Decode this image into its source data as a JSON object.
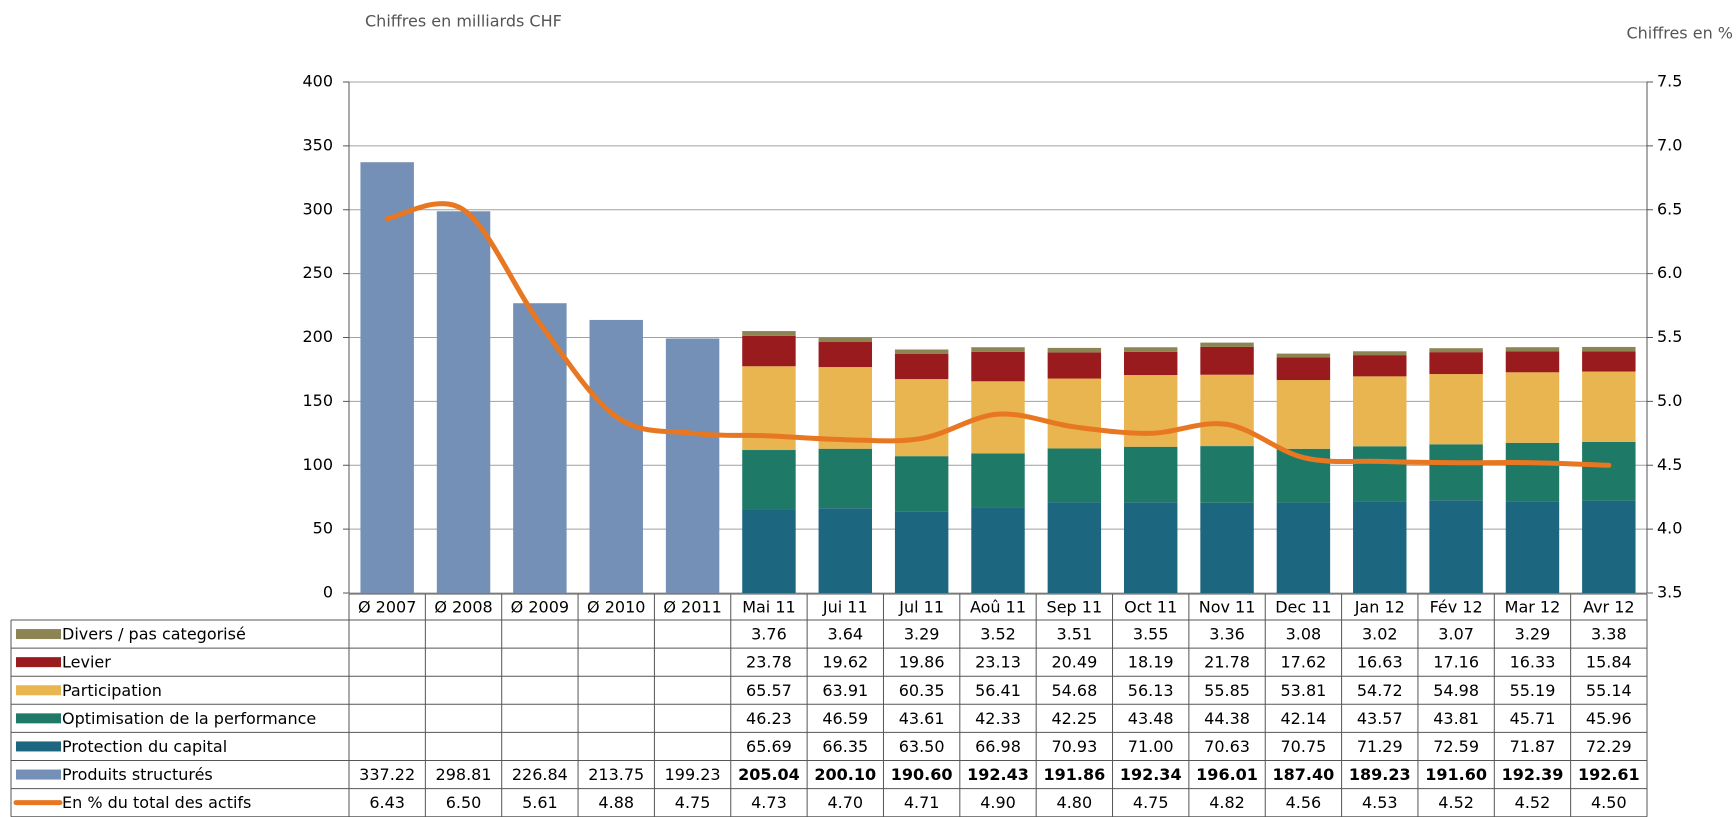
{
  "chart_data": {
    "type": "bar",
    "stacked": true,
    "y_label": "Chiffres en milliards CHF",
    "y2_label": "Chiffres en %",
    "categories": [
      "Ø 2007",
      "Ø 2008",
      "Ø 2009",
      "Ø 2010",
      "Ø 2011",
      "Mai 11",
      "Jui 11",
      "Jul 11",
      "Aoû 11",
      "Sep 11",
      "Oct 11",
      "Nov 11",
      "Dec 11",
      "Jan 12",
      "Fév 12",
      "Mar 12",
      "Avr 12"
    ],
    "ylim": [
      0,
      400
    ],
    "yticks": [
      0,
      50,
      100,
      150,
      200,
      250,
      300,
      350,
      400
    ],
    "y2lim": [
      3.5,
      7.5
    ],
    "y2ticks": [
      3.5,
      {
        "value": 4,
        "label": "4.0"
      },
      4.5,
      {
        "value": 5,
        "label": "5.0"
      },
      5.5,
      {
        "value": 6,
        "label": "6.0"
      },
      6.5,
      {
        "value": 7,
        "label": "7.0"
      },
      7.5
    ],
    "grid": true,
    "series": [
      {
        "name": "Divers / pas categorisé",
        "color": "#8c8452",
        "values": [
          null,
          null,
          null,
          null,
          null,
          3.76,
          3.64,
          3.29,
          3.52,
          3.51,
          3.55,
          3.36,
          3.08,
          3.02,
          3.07,
          3.29,
          3.38
        ],
        "value_labels": [
          null,
          null,
          null,
          null,
          null,
          "3.76",
          "3.64",
          "3.29",
          "3.52",
          "3.51",
          "3.55",
          "3.36",
          "3.08",
          "3.02",
          "3.07",
          "3.29",
          "3.38"
        ]
      },
      {
        "name": "Levier",
        "color": "#9a1b1e",
        "values": [
          null,
          null,
          null,
          null,
          null,
          23.78,
          19.62,
          19.86,
          23.13,
          20.49,
          18.19,
          21.78,
          17.62,
          16.63,
          17.16,
          16.33,
          15.84
        ],
        "value_labels": [
          null,
          null,
          null,
          null,
          null,
          "23.78",
          "19.62",
          "19.86",
          "23.13",
          "20.49",
          "18.19",
          "21.78",
          "17.62",
          "16.63",
          "17.16",
          "16.33",
          "15.84"
        ]
      },
      {
        "name": "Participation",
        "color": "#e9b550",
        "values": [
          null,
          null,
          null,
          null,
          null,
          65.57,
          63.91,
          60.35,
          56.41,
          54.68,
          56.13,
          55.85,
          53.81,
          54.72,
          54.98,
          55.19,
          55.14
        ],
        "value_labels": [
          null,
          null,
          null,
          null,
          null,
          "65.57",
          "63.91",
          "60.35",
          "56.41",
          "54.68",
          "56.13",
          "55.85",
          "53.81",
          "54.72",
          "54.98",
          "55.19",
          "55.14"
        ]
      },
      {
        "name": "Optimisation de la performance",
        "color": "#1e7a66",
        "values": [
          null,
          null,
          null,
          null,
          null,
          46.23,
          46.59,
          43.61,
          42.33,
          42.25,
          43.48,
          44.38,
          42.14,
          43.57,
          43.81,
          45.71,
          45.96
        ],
        "value_labels": [
          null,
          null,
          null,
          null,
          null,
          "46.23",
          "46.59",
          "43.61",
          "42.33",
          "42.25",
          "43.48",
          "44.38",
          "42.14",
          "43.57",
          "43.81",
          "45.71",
          "45.96"
        ]
      },
      {
        "name": "Protection du capital",
        "color": "#1d6680",
        "values": [
          null,
          null,
          null,
          null,
          null,
          65.69,
          66.35,
          63.5,
          66.98,
          70.93,
          71.0,
          70.63,
          70.75,
          71.29,
          72.59,
          71.87,
          72.29
        ],
        "value_labels": [
          null,
          null,
          null,
          null,
          null,
          "65.69",
          "66.35",
          "63.50",
          "66.98",
          "70.93",
          "71.00",
          "70.63",
          "70.75",
          "71.29",
          "72.59",
          "71.87",
          "72.29"
        ]
      },
      {
        "name": "Produits structurés",
        "color": "#7490b6",
        "values": [
          337.22,
          298.81,
          226.84,
          213.75,
          199.23,
          205.04,
          200.1,
          190.6,
          192.43,
          191.86,
          192.34,
          196.01,
          187.4,
          189.23,
          191.6,
          192.39,
          192.61
        ],
        "value_labels": [
          "337.22",
          "298.81",
          "226.84",
          "213.75",
          "199.23",
          "205.04",
          "200.10",
          "190.60",
          "192.43",
          "191.86",
          "192.34",
          "196.01",
          "187.40",
          "189.23",
          "191.60",
          "192.39",
          "192.61"
        ]
      },
      {
        "name": "En % du total des actifs",
        "color": "#e87722",
        "type": "line",
        "axis": "y2",
        "values": [
          6.43,
          6.5,
          5.61,
          4.88,
          4.75,
          4.73,
          4.7,
          4.71,
          4.9,
          4.8,
          4.75,
          4.82,
          4.56,
          4.53,
          4.52,
          4.52,
          4.5
        ],
        "value_labels": [
          "6.43",
          "6.50",
          "5.61",
          "4.88",
          "4.75",
          "4.73",
          "4.70",
          "4.71",
          "4.90",
          "4.80",
          "4.75",
          "4.82",
          "4.56",
          "4.53",
          "4.52",
          "4.52",
          "4.50"
        ]
      }
    ]
  }
}
